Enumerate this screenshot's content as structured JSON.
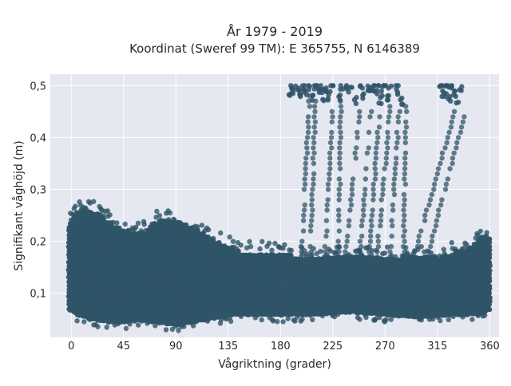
{
  "chart_data": {
    "type": "scatter",
    "title_line1": "År 1979 - 2019",
    "title_line2": "Koordinat (Sweref 99 TM): E 365755, N 6146389",
    "xlabel": "Vågriktning (grader)",
    "ylabel": "Signifikant våghöjd (m)",
    "xlim": [
      -18,
      368
    ],
    "ylim": [
      0.015,
      0.522
    ],
    "xticks": [
      0,
      45,
      90,
      135,
      180,
      225,
      270,
      315,
      360
    ],
    "yticks": [
      0.1,
      0.2,
      0.3,
      0.4,
      0.5
    ],
    "xtick_labels": [
      "0",
      "45",
      "90",
      "135",
      "180",
      "225",
      "270",
      "315",
      "360"
    ],
    "ytick_labels": [
      "0,1",
      "0,2",
      "0,3",
      "0,4",
      "0,5"
    ],
    "grid": true,
    "marker_color": "#2f5468",
    "background_color": "#e5e8f0",
    "dense_region": {
      "x_range": [
        -2,
        360
      ],
      "upper_envelope": [
        [
          -2,
          0.23
        ],
        [
          5,
          0.26
        ],
        [
          20,
          0.26
        ],
        [
          30,
          0.24
        ],
        [
          45,
          0.22
        ],
        [
          65,
          0.22
        ],
        [
          72,
          0.24
        ],
        [
          92,
          0.24
        ],
        [
          110,
          0.22
        ],
        [
          125,
          0.2
        ],
        [
          145,
          0.18
        ],
        [
          175,
          0.18
        ],
        [
          195,
          0.17
        ],
        [
          230,
          0.17
        ],
        [
          300,
          0.17
        ],
        [
          318,
          0.17
        ],
        [
          330,
          0.18
        ],
        [
          345,
          0.19
        ],
        [
          352,
          0.21
        ],
        [
          360,
          0.21
        ]
      ],
      "lower_envelope": [
        [
          -2,
          0.07
        ],
        [
          5,
          0.06
        ],
        [
          20,
          0.05
        ],
        [
          40,
          0.045
        ],
        [
          60,
          0.05
        ],
        [
          90,
          0.04
        ],
        [
          115,
          0.05
        ],
        [
          140,
          0.06
        ],
        [
          180,
          0.06
        ],
        [
          210,
          0.06
        ],
        [
          240,
          0.065
        ],
        [
          270,
          0.06
        ],
        [
          300,
          0.055
        ],
        [
          330,
          0.06
        ],
        [
          350,
          0.06
        ],
        [
          360,
          0.07
        ]
      ]
    },
    "high_wave_points": [
      [
        188,
        0.48
      ],
      [
        190,
        0.5
      ],
      [
        192,
        0.49
      ],
      [
        195,
        0.5
      ],
      [
        197,
        0.48
      ],
      [
        200,
        0.5
      ],
      [
        202,
        0.49
      ],
      [
        205,
        0.5
      ],
      [
        207,
        0.48
      ],
      [
        210,
        0.5
      ],
      [
        212,
        0.49
      ],
      [
        214,
        0.5
      ],
      [
        216,
        0.48
      ],
      [
        218,
        0.5
      ],
      [
        220,
        0.49
      ],
      [
        222,
        0.48
      ],
      [
        224,
        0.5
      ],
      [
        230,
        0.48
      ],
      [
        233,
        0.5
      ],
      [
        236,
        0.5
      ],
      [
        240,
        0.49
      ],
      [
        245,
        0.47
      ],
      [
        250,
        0.5
      ],
      [
        252,
        0.48
      ],
      [
        255,
        0.5
      ],
      [
        258,
        0.49
      ],
      [
        260,
        0.5
      ],
      [
        262,
        0.48
      ],
      [
        264,
        0.5
      ],
      [
        266,
        0.47
      ],
      [
        268,
        0.49
      ],
      [
        270,
        0.5
      ],
      [
        272,
        0.48
      ],
      [
        274,
        0.49
      ],
      [
        280,
        0.5
      ],
      [
        282,
        0.48
      ],
      [
        284,
        0.47
      ],
      [
        318,
        0.5
      ],
      [
        320,
        0.48
      ],
      [
        322,
        0.49
      ],
      [
        324,
        0.5
      ],
      [
        326,
        0.48
      ],
      [
        328,
        0.5
      ],
      [
        330,
        0.49
      ],
      [
        332,
        0.47
      ],
      [
        335,
        0.5
      ]
    ],
    "high_wave_tracks": [
      {
        "x_start": 205,
        "y_top": 0.48,
        "x_end": 198,
        "y_bottom": 0.17
      },
      {
        "x_start": 210,
        "y_top": 0.47,
        "x_end": 206,
        "y_bottom": 0.17
      },
      {
        "x_start": 225,
        "y_top": 0.45,
        "x_end": 218,
        "y_bottom": 0.17
      },
      {
        "x_start": 232,
        "y_top": 0.47,
        "x_end": 230,
        "y_bottom": 0.17
      },
      {
        "x_start": 248,
        "y_top": 0.45,
        "x_end": 236,
        "y_bottom": 0.17
      },
      {
        "x_start": 258,
        "y_top": 0.45,
        "x_end": 248,
        "y_bottom": 0.17
      },
      {
        "x_start": 265,
        "y_top": 0.44,
        "x_end": 256,
        "y_bottom": 0.17
      },
      {
        "x_start": 275,
        "y_top": 0.47,
        "x_end": 263,
        "y_bottom": 0.17
      },
      {
        "x_start": 282,
        "y_top": 0.45,
        "x_end": 274,
        "y_bottom": 0.17
      },
      {
        "x_start": 288,
        "y_top": 0.46,
        "x_end": 286,
        "y_bottom": 0.17
      },
      {
        "x_start": 330,
        "y_top": 0.45,
        "x_end": 296,
        "y_bottom": 0.18
      },
      {
        "x_start": 338,
        "y_top": 0.44,
        "x_end": 306,
        "y_bottom": 0.17
      }
    ]
  }
}
